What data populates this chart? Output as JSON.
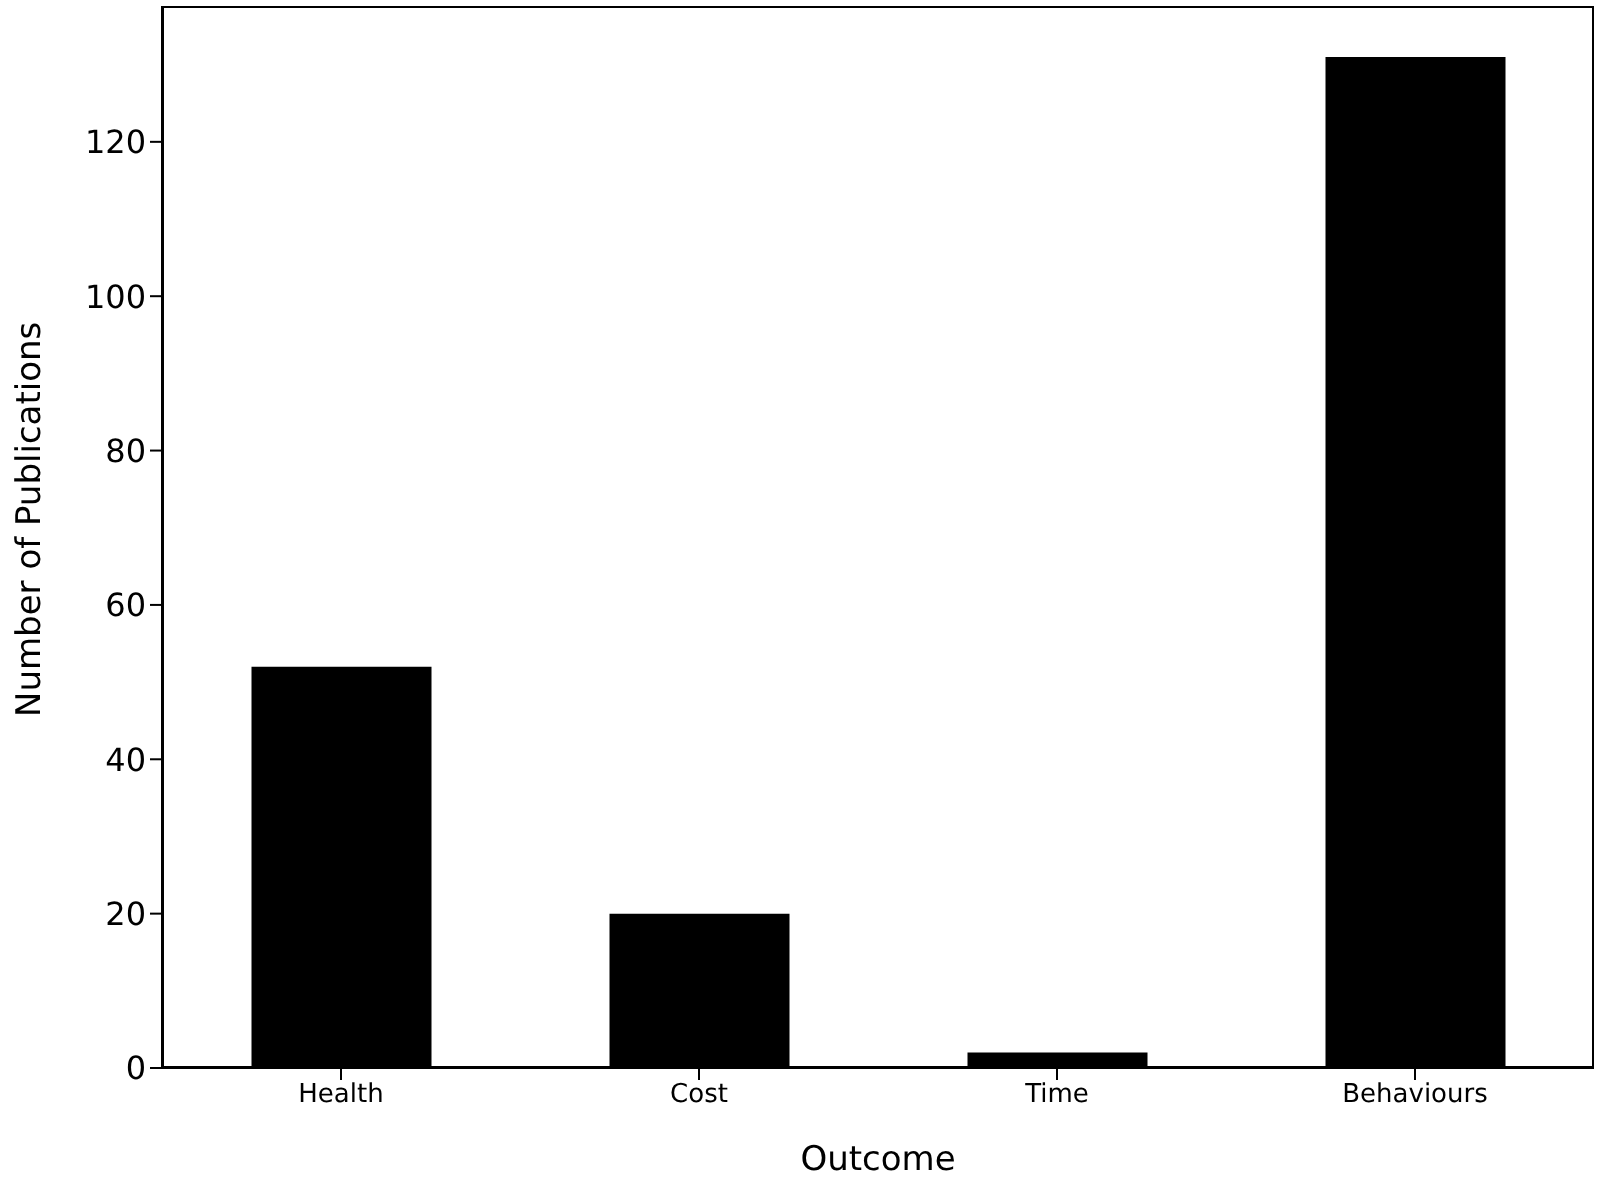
{
  "chart_data": {
    "type": "bar",
    "xlabel": "Outcome",
    "ylabel": "Number of Publications",
    "categories": [
      "Health",
      "Cost",
      "Time",
      "Behaviours"
    ],
    "values": [
      52,
      20,
      2,
      131
    ],
    "color": "#000000",
    "ylim": [
      0,
      137.6
    ],
    "yticks": [
      0,
      20,
      40,
      60,
      80,
      100,
      120
    ],
    "grid": false
  }
}
